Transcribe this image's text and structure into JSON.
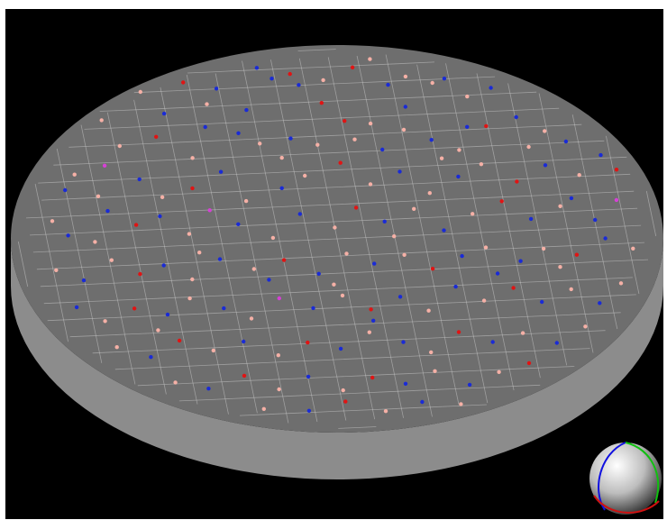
{
  "viewer": {
    "background_color": "#000000",
    "wafer_top_color": "#6e6e6e",
    "wafer_side_color": "#8c8c8c",
    "grid_color": "#c8c8c8",
    "gizmo_colors": {
      "x_axis": "#d01010",
      "y_axis": "#10c010",
      "z_axis": "#1010e0",
      "sphere": "#ffffff"
    }
  },
  "defects": {
    "class_colors": {
      "blue": "#1a2bd6",
      "red": "#e01414",
      "pink": "#f5b0a6",
      "magenta": "#d640d6"
    },
    "points": [
      [
        "blue",
        0.22,
        0.08
      ],
      [
        "pink",
        0.24,
        0.09
      ],
      [
        "red",
        0.31,
        0.07
      ],
      [
        "blue",
        0.36,
        0.09
      ],
      [
        "pink",
        0.34,
        0.13
      ],
      [
        "blue",
        0.43,
        0.04
      ],
      [
        "blue",
        0.45,
        0.07
      ],
      [
        "red",
        0.48,
        0.06
      ],
      [
        "blue",
        0.49,
        0.09
      ],
      [
        "pink",
        0.53,
        0.08
      ],
      [
        "red",
        0.58,
        0.05
      ],
      [
        "pink",
        0.61,
        0.03
      ],
      [
        "blue",
        0.63,
        0.1
      ],
      [
        "pink",
        0.66,
        0.08
      ],
      [
        "pink",
        0.7,
        0.1
      ],
      [
        "blue",
        0.72,
        0.09
      ],
      [
        "pink",
        0.75,
        0.14
      ],
      [
        "blue",
        0.79,
        0.12
      ],
      [
        "pink",
        0.17,
        0.16
      ],
      [
        "blue",
        0.13,
        0.17
      ],
      [
        "pink",
        0.19,
        0.23
      ],
      [
        "red",
        0.25,
        0.21
      ],
      [
        "blue",
        0.33,
        0.19
      ],
      [
        "blue",
        0.38,
        0.21
      ],
      [
        "pink",
        0.41,
        0.24
      ],
      [
        "blue",
        0.46,
        0.23
      ],
      [
        "pink",
        0.5,
        0.25
      ],
      [
        "red",
        0.55,
        0.19
      ],
      [
        "pink",
        0.59,
        0.2
      ],
      [
        "blue",
        0.6,
        0.27
      ],
      [
        "pink",
        0.64,
        0.22
      ],
      [
        "blue",
        0.68,
        0.25
      ],
      [
        "pink",
        0.72,
        0.28
      ],
      [
        "red",
        0.77,
        0.22
      ],
      [
        "blue",
        0.82,
        0.2
      ],
      [
        "pink",
        0.86,
        0.24
      ],
      [
        "blue",
        0.89,
        0.27
      ],
      [
        "pink",
        0.11,
        0.3
      ],
      [
        "blue",
        0.09,
        0.34
      ],
      [
        "pink",
        0.14,
        0.36
      ],
      [
        "magenta",
        0.16,
        0.28
      ],
      [
        "blue",
        0.21,
        0.32
      ],
      [
        "pink",
        0.24,
        0.37
      ],
      [
        "red",
        0.29,
        0.35
      ],
      [
        "blue",
        0.34,
        0.31
      ],
      [
        "pink",
        0.37,
        0.39
      ],
      [
        "blue",
        0.43,
        0.36
      ],
      [
        "pink",
        0.47,
        0.33
      ],
      [
        "red",
        0.53,
        0.3
      ],
      [
        "pink",
        0.57,
        0.36
      ],
      [
        "blue",
        0.62,
        0.33
      ],
      [
        "pink",
        0.66,
        0.39
      ],
      [
        "blue",
        0.71,
        0.35
      ],
      [
        "pink",
        0.75,
        0.32
      ],
      [
        "red",
        0.8,
        0.37
      ],
      [
        "blue",
        0.85,
        0.33
      ],
      [
        "pink",
        0.9,
        0.36
      ],
      [
        "blue",
        0.94,
        0.31
      ],
      [
        "red",
        0.96,
        0.35
      ],
      [
        "pink",
        0.06,
        0.42
      ],
      [
        "blue",
        0.08,
        0.46
      ],
      [
        "pink",
        0.12,
        0.48
      ],
      [
        "red",
        0.19,
        0.44
      ],
      [
        "blue",
        0.23,
        0.42
      ],
      [
        "pink",
        0.27,
        0.47
      ],
      [
        "magenta",
        0.31,
        0.41
      ],
      [
        "blue",
        0.35,
        0.45
      ],
      [
        "pink",
        0.4,
        0.49
      ],
      [
        "blue",
        0.45,
        0.43
      ],
      [
        "pink",
        0.5,
        0.47
      ],
      [
        "red",
        0.54,
        0.42
      ],
      [
        "blue",
        0.58,
        0.46
      ],
      [
        "pink",
        0.63,
        0.43
      ],
      [
        "blue",
        0.67,
        0.49
      ],
      [
        "pink",
        0.72,
        0.45
      ],
      [
        "red",
        0.77,
        0.42
      ],
      [
        "blue",
        0.81,
        0.47
      ],
      [
        "pink",
        0.86,
        0.44
      ],
      [
        "blue",
        0.91,
        0.48
      ],
      [
        "magenta",
        0.95,
        0.43
      ],
      [
        "pink",
        0.05,
        0.55
      ],
      [
        "blue",
        0.09,
        0.58
      ],
      [
        "pink",
        0.14,
        0.53
      ],
      [
        "red",
        0.18,
        0.57
      ],
      [
        "blue",
        0.22,
        0.55
      ],
      [
        "pink",
        0.26,
        0.59
      ],
      [
        "blue",
        0.31,
        0.54
      ],
      [
        "pink",
        0.36,
        0.57
      ],
      [
        "red",
        0.41,
        0.55
      ],
      [
        "blue",
        0.46,
        0.59
      ],
      [
        "pink",
        0.51,
        0.54
      ],
      [
        "blue",
        0.55,
        0.57
      ],
      [
        "pink",
        0.6,
        0.55
      ],
      [
        "red",
        0.64,
        0.59
      ],
      [
        "blue",
        0.69,
        0.56
      ],
      [
        "pink",
        0.73,
        0.54
      ],
      [
        "blue",
        0.78,
        0.58
      ],
      [
        "pink",
        0.82,
        0.55
      ],
      [
        "red",
        0.87,
        0.57
      ],
      [
        "blue",
        0.92,
        0.53
      ],
      [
        "pink",
        0.96,
        0.56
      ],
      [
        "blue",
        0.07,
        0.65
      ],
      [
        "pink",
        0.11,
        0.69
      ],
      [
        "red",
        0.16,
        0.66
      ],
      [
        "blue",
        0.21,
        0.68
      ],
      [
        "pink",
        0.25,
        0.64
      ],
      [
        "blue",
        0.3,
        0.67
      ],
      [
        "pink",
        0.34,
        0.7
      ],
      [
        "magenta",
        0.39,
        0.65
      ],
      [
        "blue",
        0.44,
        0.68
      ],
      [
        "pink",
        0.49,
        0.65
      ],
      [
        "red",
        0.53,
        0.69
      ],
      [
        "blue",
        0.58,
        0.66
      ],
      [
        "pink",
        0.62,
        0.7
      ],
      [
        "blue",
        0.67,
        0.64
      ],
      [
        "pink",
        0.71,
        0.68
      ],
      [
        "red",
        0.76,
        0.65
      ],
      [
        "blue",
        0.8,
        0.69
      ],
      [
        "pink",
        0.85,
        0.66
      ],
      [
        "blue",
        0.89,
        0.7
      ],
      [
        "pink",
        0.93,
        0.65
      ],
      [
        "pink",
        0.12,
        0.76
      ],
      [
        "blue",
        0.17,
        0.79
      ],
      [
        "red",
        0.22,
        0.75
      ],
      [
        "pink",
        0.27,
        0.78
      ],
      [
        "blue",
        0.32,
        0.76
      ],
      [
        "pink",
        0.37,
        0.8
      ],
      [
        "red",
        0.42,
        0.77
      ],
      [
        "blue",
        0.47,
        0.79
      ],
      [
        "pink",
        0.52,
        0.75
      ],
      [
        "blue",
        0.57,
        0.78
      ],
      [
        "pink",
        0.61,
        0.81
      ],
      [
        "red",
        0.66,
        0.76
      ],
      [
        "blue",
        0.71,
        0.79
      ],
      [
        "pink",
        0.76,
        0.77
      ],
      [
        "blue",
        0.81,
        0.8
      ],
      [
        "pink",
        0.86,
        0.76
      ],
      [
        "pink",
        0.2,
        0.86
      ],
      [
        "blue",
        0.25,
        0.88
      ],
      [
        "red",
        0.31,
        0.85
      ],
      [
        "pink",
        0.36,
        0.89
      ],
      [
        "blue",
        0.41,
        0.86
      ],
      [
        "pink",
        0.46,
        0.9
      ],
      [
        "red",
        0.51,
        0.87
      ],
      [
        "blue",
        0.56,
        0.89
      ],
      [
        "pink",
        0.61,
        0.86
      ],
      [
        "blue",
        0.66,
        0.9
      ],
      [
        "pink",
        0.71,
        0.87
      ],
      [
        "red",
        0.76,
        0.85
      ],
      [
        "pink",
        0.33,
        0.94
      ],
      [
        "blue",
        0.4,
        0.95
      ],
      [
        "red",
        0.46,
        0.93
      ],
      [
        "pink",
        0.52,
        0.96
      ],
      [
        "blue",
        0.58,
        0.94
      ],
      [
        "pink",
        0.64,
        0.95
      ],
      [
        "blue",
        0.27,
        0.15
      ],
      [
        "pink",
        0.3,
        0.27
      ],
      [
        "blue",
        0.4,
        0.15
      ],
      [
        "pink",
        0.44,
        0.28
      ],
      [
        "red",
        0.52,
        0.14
      ],
      [
        "pink",
        0.56,
        0.24
      ],
      [
        "blue",
        0.65,
        0.16
      ],
      [
        "pink",
        0.69,
        0.3
      ],
      [
        "blue",
        0.74,
        0.22
      ],
      [
        "pink",
        0.83,
        0.28
      ],
      [
        "blue",
        0.15,
        0.4
      ],
      [
        "pink",
        0.28,
        0.52
      ],
      [
        "blue",
        0.38,
        0.6
      ],
      [
        "pink",
        0.48,
        0.62
      ],
      [
        "blue",
        0.53,
        0.72
      ],
      [
        "pink",
        0.59,
        0.5
      ],
      [
        "blue",
        0.74,
        0.61
      ],
      [
        "pink",
        0.84,
        0.6
      ],
      [
        "blue",
        0.88,
        0.42
      ],
      [
        "pink",
        0.19,
        0.72
      ]
    ]
  }
}
